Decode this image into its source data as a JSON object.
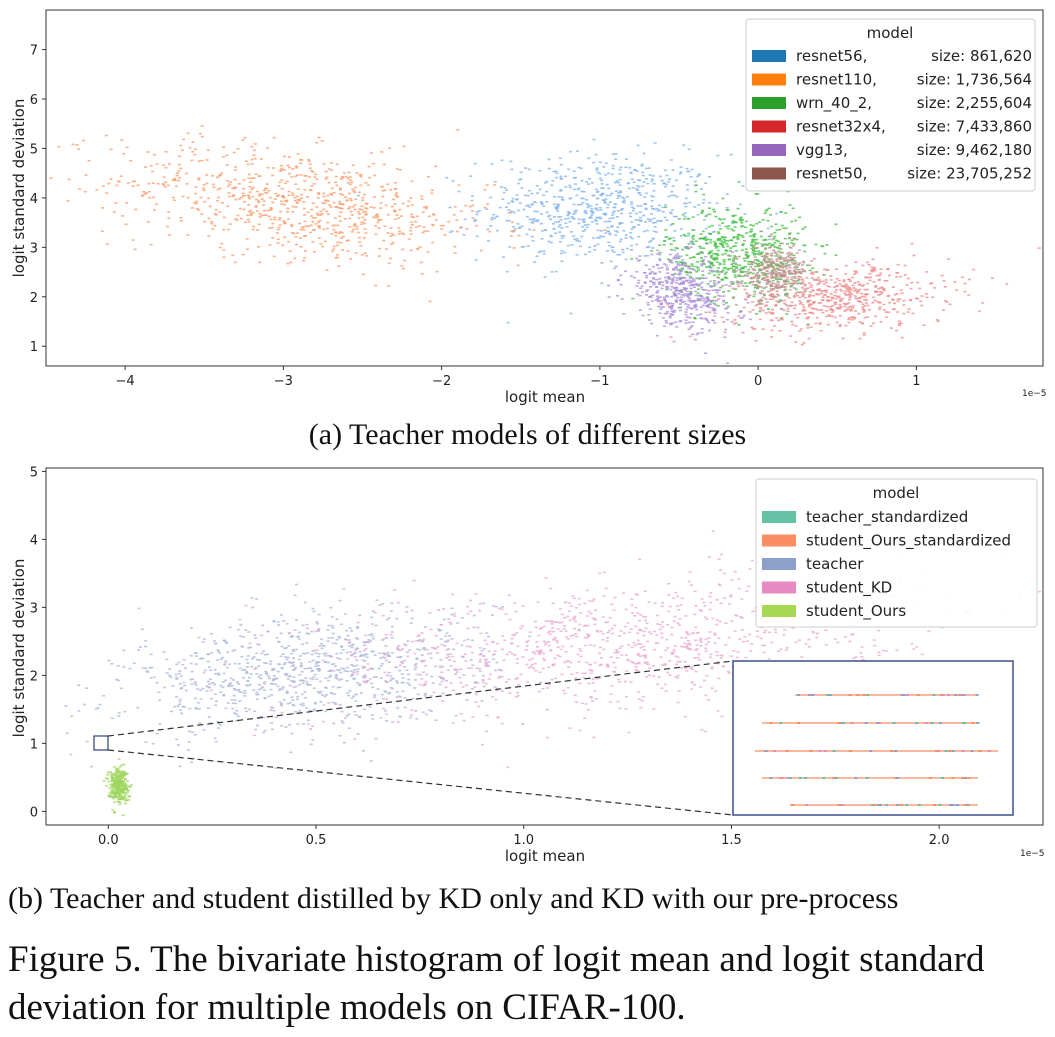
{
  "chart_data": [
    {
      "type": "scatter",
      "title": "",
      "xlabel": "logit mean",
      "ylabel": "logit standard deviation",
      "x_scale_label": "1e−5",
      "xlim": [
        -4.5,
        1.8
      ],
      "ylim": [
        0.6,
        7.8
      ],
      "x_ticks": [
        -4,
        -3,
        -2,
        -1,
        0,
        1
      ],
      "x_tick_labels": [
        "−4",
        "−3",
        "−2",
        "−1",
        "0",
        "1"
      ],
      "y_ticks": [
        1,
        2,
        3,
        4,
        5,
        6,
        7
      ],
      "y_tick_labels": [
        "1",
        "2",
        "3",
        "4",
        "5",
        "6",
        "7"
      ],
      "legend_title": "model",
      "legend_position": "top-right",
      "series": [
        {
          "name": "resnet56,",
          "size_label": "size: 861,620",
          "color": "#1f77b4",
          "point_color": "#7fb2ea",
          "center": [
            -1.0,
            3.8
          ],
          "spread": [
            0.38,
            0.55
          ],
          "corr": 0.0,
          "n": 650
        },
        {
          "name": "resnet110,",
          "size_label": "size: 1,736,564",
          "color": "#ff7f0e",
          "point_color": "#f99a66",
          "center": [
            -2.9,
            3.9
          ],
          "spread": [
            0.6,
            0.6
          ],
          "corr": -0.4,
          "n": 800
        },
        {
          "name": "wrn_40_2,",
          "size_label": "size: 2,255,604",
          "color": "#2ca02c",
          "point_color": "#3cbf3c",
          "center": [
            -0.15,
            2.9
          ],
          "spread": [
            0.22,
            0.5
          ],
          "corr": 0.0,
          "n": 550
        },
        {
          "name": "resnet32x4,",
          "size_label": "size: 7,433,860",
          "color": "#d62728",
          "point_color": "#ee8888",
          "center": [
            0.5,
            2.0
          ],
          "spread": [
            0.35,
            0.35
          ],
          "corr": 0.2,
          "n": 550
        },
        {
          "name": "vgg13,",
          "size_label": "size: 9,462,180",
          "color": "#9467bd",
          "point_color": "#a88bd8",
          "center": [
            -0.5,
            2.1
          ],
          "spread": [
            0.18,
            0.38
          ],
          "corr": -0.3,
          "n": 450
        },
        {
          "name": "resnet50,",
          "size_label": "size: 23,705,252",
          "color": "#8c564b",
          "point_color": "#b89088",
          "center": [
            0.1,
            2.5
          ],
          "spread": [
            0.1,
            0.28
          ],
          "corr": 0.0,
          "n": 350
        }
      ]
    },
    {
      "type": "scatter",
      "title": "",
      "xlabel": "logit mean",
      "ylabel": "logit standard deviation",
      "x_scale_label": "1e−5",
      "xlim": [
        -0.15,
        2.25
      ],
      "ylim": [
        -0.2,
        5.05
      ],
      "x_ticks": [
        0.0,
        0.5,
        1.0,
        1.5,
        2.0
      ],
      "x_tick_labels": [
        "0.0",
        "0.5",
        "1.0",
        "1.5",
        "2.0"
      ],
      "y_ticks": [
        0,
        1,
        2,
        3,
        4,
        5
      ],
      "y_tick_labels": [
        "0",
        "1",
        "2",
        "3",
        "4",
        "5"
      ],
      "legend_title": "model",
      "legend_position": "top-right",
      "inset": "zoomed view of region near (0.0, 1.0)",
      "series": [
        {
          "name": "teacher_standardized",
          "color": "#66c2a5",
          "center": [
            0.0,
            1.0
          ]
        },
        {
          "name": "student_Ours_standardized",
          "color": "#fc8d62",
          "center": [
            0.0,
            1.0
          ]
        },
        {
          "name": "teacher",
          "color": "#8da0cb",
          "point_color": "#a9b4d8",
          "center": [
            0.48,
            2.05
          ],
          "spread": [
            0.22,
            0.45
          ],
          "corr": 0.3,
          "n": 900
        },
        {
          "name": "student_KD",
          "color": "#e78ac3",
          "point_color": "#e9a6cf",
          "center": [
            1.2,
            2.45
          ],
          "spread": [
            0.35,
            0.5
          ],
          "corr": 0.3,
          "n": 1000
        },
        {
          "name": "student_Ours",
          "color": "#a6d854",
          "point_color": "#9fd660",
          "center": [
            0.02,
            0.4
          ],
          "spread": [
            0.012,
            0.13
          ],
          "corr": 0.0,
          "n": 300
        }
      ]
    }
  ],
  "captions": {
    "a": "(a) Teacher models of different sizes",
    "b": "(b) Teacher and student distilled by KD only and KD with our pre-process",
    "figure": "Figure 5. The bivariate histogram of logit mean and logit standard deviation for multiple models on CIFAR-100."
  }
}
